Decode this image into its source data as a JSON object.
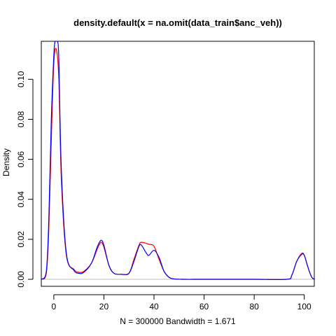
{
  "chart_data": {
    "type": "line",
    "title": "density.default(x = na.omit(data_train$anc_veh))",
    "xlabel": "N = 300000   Bandwidth = 1.671",
    "ylabel": "Density",
    "xlim": [
      -5,
      104
    ],
    "ylim": [
      -0.0035,
      0.119
    ],
    "x_ticks": [
      "0",
      "20",
      "40",
      "60",
      "80",
      "100"
    ],
    "x_tick_values": [
      0,
      20,
      40,
      60,
      80,
      100
    ],
    "y_ticks": [
      "0.00",
      "0.02",
      "0.04",
      "0.06",
      "0.08",
      "0.10"
    ],
    "y_tick_values": [
      0,
      0.02,
      0.04,
      0.06,
      0.08,
      0.1
    ],
    "grid": false,
    "legend": "none",
    "colors": {
      "series_1": "#ff0000",
      "series_2": "#0000ff",
      "zero_line": "#bebebe",
      "axis": "#000000"
    },
    "series": [
      {
        "color": "#ff0000",
        "x": [
          -5,
          -3,
          -2,
          -1,
          0,
          1,
          2,
          3,
          5,
          8,
          10,
          12,
          15,
          17,
          18,
          19,
          20,
          22,
          24,
          27,
          30,
          32,
          34,
          35,
          38,
          40,
          42,
          44,
          46,
          48,
          52,
          60,
          80,
          93,
          95,
          97,
          99,
          100,
          101,
          102,
          103,
          104
        ],
        "y": [
          0.0,
          0.003,
          0.025,
          0.07,
          0.108,
          0.115,
          0.1,
          0.05,
          0.012,
          0.005,
          0.0035,
          0.004,
          0.008,
          0.014,
          0.017,
          0.0185,
          0.016,
          0.007,
          0.003,
          0.0025,
          0.003,
          0.01,
          0.017,
          0.0185,
          0.0175,
          0.0165,
          0.01,
          0.004,
          0.001,
          0.0002,
          0.0,
          0.0,
          0.0,
          0.0,
          0.002,
          0.009,
          0.013,
          0.012,
          0.008,
          0.004,
          0.001,
          0.0
        ]
      },
      {
        "color": "#0000ff",
        "x": [
          -5,
          -3,
          -2,
          -1,
          0,
          0.5,
          1,
          1.5,
          2,
          3,
          5,
          8,
          10,
          12,
          15,
          17,
          18,
          19,
          20,
          22,
          24,
          27,
          30,
          32,
          34,
          35,
          37,
          38,
          40,
          42,
          44,
          46,
          48,
          52,
          60,
          80,
          93,
          95,
          97,
          99,
          100,
          101,
          102,
          103,
          104
        ],
        "y": [
          0.0,
          0.004,
          0.03,
          0.08,
          0.112,
          0.119,
          0.12,
          0.119,
          0.11,
          0.055,
          0.013,
          0.0045,
          0.003,
          0.0035,
          0.008,
          0.015,
          0.018,
          0.0195,
          0.017,
          0.007,
          0.003,
          0.0025,
          0.003,
          0.009,
          0.0165,
          0.017,
          0.013,
          0.012,
          0.0145,
          0.011,
          0.004,
          0.001,
          0.0002,
          0.0,
          0.0,
          0.0,
          0.0,
          0.002,
          0.009,
          0.0125,
          0.012,
          0.008,
          0.004,
          0.001,
          0.0
        ]
      }
    ]
  }
}
